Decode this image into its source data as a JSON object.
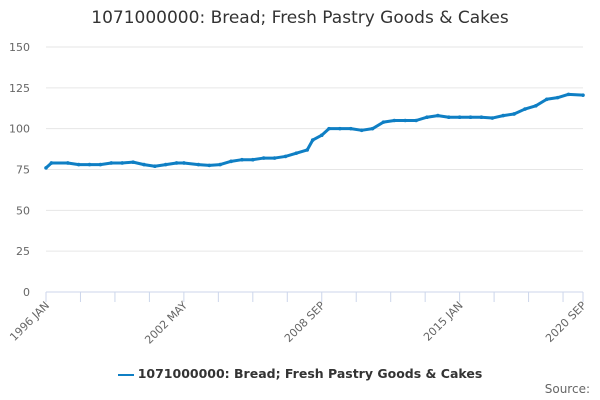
{
  "chart_data": {
    "type": "line",
    "title": "1071000000: Bread; Fresh Pastry Goods & Cakes",
    "xlabel": "",
    "ylabel": "",
    "ylim": [
      0,
      150
    ],
    "yticks": [
      0,
      25,
      50,
      75,
      100,
      125,
      150
    ],
    "xticks": [
      "1996 JAN",
      "2002 MAY",
      "2008 SEP",
      "2015 JAN",
      "2020 SEP"
    ],
    "xrange": [
      "1996-01",
      "2020-09"
    ],
    "grid": true,
    "legend": "bottom",
    "series": [
      {
        "name": "1071000000: Bread; Fresh Pastry Goods & Cakes",
        "color": "#0f7fc4",
        "x": [
          "1996-01",
          "1996-04",
          "1997-01",
          "1997-07",
          "1998-01",
          "1998-07",
          "1999-01",
          "1999-07",
          "2000-01",
          "2000-07",
          "2001-01",
          "2001-07",
          "2002-01",
          "2002-05",
          "2003-01",
          "2003-07",
          "2004-01",
          "2004-07",
          "2005-01",
          "2005-07",
          "2006-01",
          "2006-07",
          "2007-01",
          "2007-07",
          "2008-01",
          "2008-04",
          "2008-09",
          "2009-01",
          "2009-07",
          "2010-01",
          "2010-07",
          "2011-01",
          "2011-07",
          "2012-01",
          "2012-07",
          "2013-01",
          "2013-07",
          "2014-01",
          "2014-07",
          "2015-01",
          "2015-07",
          "2016-01",
          "2016-07",
          "2017-01",
          "2017-07",
          "2018-01",
          "2018-07",
          "2019-01",
          "2019-07",
          "2020-01",
          "2020-09"
        ],
        "values": [
          76,
          79,
          79,
          78,
          78,
          78,
          79,
          79,
          79.5,
          78,
          77,
          78,
          79,
          79,
          78,
          77.5,
          78,
          80,
          81,
          81,
          82,
          82,
          83,
          85,
          87,
          93,
          96,
          100,
          100,
          100,
          99,
          100,
          104,
          105,
          105,
          105,
          107,
          108,
          107,
          107,
          107,
          107,
          106.5,
          108,
          109,
          112,
          114,
          118,
          119,
          121,
          120.5
        ]
      }
    ]
  },
  "source_label": "Source:"
}
